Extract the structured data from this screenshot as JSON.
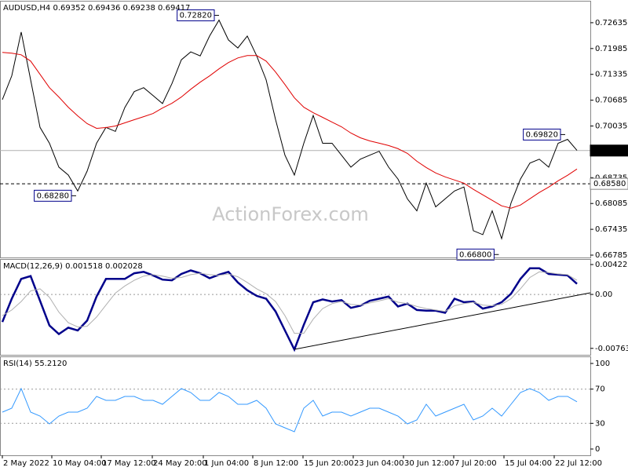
{
  "chart_data": [
    {
      "type": "line",
      "title": "AUDUSD,H4  0.69352 0.69436 0.69238 0.69417",
      "watermark": "ActionForex.com",
      "xlim": [
        -0.25,
        62.4167
      ],
      "ylim": [
        0.66726,
        0.73167
      ],
      "yticks": [
        0.72635,
        0.71985,
        0.71335,
        0.70685,
        0.70035,
        0.69385,
        0.68735,
        0.68085,
        0.67435,
        0.66785
      ],
      "series": [
        {
          "name": "AUDUSD",
          "color": "#000000",
          "width": 1,
          "values": [
            0.707,
            0.713,
            0.724,
            0.712,
            0.7,
            0.696,
            0.69,
            0.688,
            0.684,
            0.689,
            0.696,
            0.7,
            0.699,
            0.705,
            0.709,
            0.71,
            0.708,
            0.706,
            0.711,
            0.717,
            0.719,
            0.718,
            0.723,
            0.727,
            0.722,
            0.72,
            0.723,
            0.718,
            0.712,
            0.702,
            0.693,
            0.688,
            0.696,
            0.703,
            0.696,
            0.696,
            0.693,
            0.69,
            0.692,
            0.693,
            0.694,
            0.69,
            0.687,
            0.682,
            0.679,
            0.686,
            0.68,
            0.682,
            0.684,
            0.685,
            0.674,
            0.673,
            0.679,
            0.672,
            0.681,
            0.687,
            0.691,
            0.692,
            0.69,
            0.696,
            0.697,
            0.6942
          ]
        },
        {
          "name": "MA",
          "color": "#e00000",
          "width": 1,
          "values": [
            0.71887,
            0.71867,
            0.71828,
            0.7167,
            0.71335,
            0.71,
            0.70764,
            0.70508,
            0.70291,
            0.70094,
            0.69976,
            0.69996,
            0.70035,
            0.70114,
            0.70193,
            0.70271,
            0.7035,
            0.70488,
            0.70606,
            0.70764,
            0.70961,
            0.71138,
            0.71296,
            0.71473,
            0.71631,
            0.71749,
            0.71808,
            0.71808,
            0.7167,
            0.71394,
            0.71079,
            0.70744,
            0.70508,
            0.7037,
            0.70252,
            0.70133,
            0.70015,
            0.69858,
            0.6974,
            0.69661,
            0.69602,
            0.69543,
            0.69464,
            0.69346,
            0.69149,
            0.68991,
            0.68853,
            0.68755,
            0.68676,
            0.68597,
            0.6844,
            0.68302,
            0.68164,
            0.68026,
            0.67967,
            0.68046,
            0.68203,
            0.68361,
            0.68499,
            0.68656,
            0.68794,
            0.68952
          ]
        }
      ],
      "price_lines": [
        {
          "value": 0.69417,
          "style": "solid"
        },
        {
          "value": 0.6858,
          "label": "0.68580",
          "style": "dashed"
        }
      ],
      "annotations": [
        {
          "x": 23,
          "value": 0.7282,
          "label": "0.72820"
        },
        {
          "x": 7.83,
          "value": 0.6828,
          "label": "0.68280"
        },
        {
          "x": 59.75,
          "value": 0.6982,
          "label": "0.69820"
        },
        {
          "x": 52.7,
          "value": 0.668,
          "label": "0.66800"
        }
      ]
    },
    {
      "type": "line",
      "title": "MACD(12,26,9) 0.001518 0.002028",
      "xlim": [
        -0.25,
        62.4167
      ],
      "ylim": [
        -0.008547,
        0.004895
      ],
      "yticks": [
        0.004229,
        {
          "value": 0,
          "label": "0.00"
        },
        -0.007633
      ],
      "levels": [
        0
      ],
      "series": [
        {
          "name": "MACD",
          "color": "#00008b",
          "width": 2.5,
          "values": [
            -0.0039,
            -0.0006,
            0.0022,
            0.0026,
            -0.0009,
            -0.0044,
            -0.0056,
            -0.0047,
            -0.0051,
            -0.0037,
            -0.0003,
            0.0022,
            0.0022,
            0.0022,
            0.003,
            0.0032,
            0.0027,
            0.0021,
            0.002,
            0.0029,
            0.0034,
            0.003,
            0.0023,
            0.0028,
            0.0032,
            0.0017,
            0.0006,
            -0.0002,
            -0.0006,
            -0.0024,
            -0.0051,
            -0.0078,
            -0.0043,
            -0.0011,
            -0.0007,
            -0.001,
            -0.0008,
            -0.0019,
            -0.0016,
            -0.0009,
            -0.0006,
            -0.0003,
            -0.0017,
            -0.0013,
            -0.0022,
            -0.0023,
            -0.0023,
            -0.0026,
            -0.0006,
            -0.0011,
            -0.001,
            -0.002,
            -0.0017,
            -0.0011,
            0.0001,
            0.0022,
            0.0037,
            0.0037,
            0.0029,
            0.0028,
            0.0027,
            0.0015
          ]
        },
        {
          "name": "Signal",
          "color": "#b0b0b0",
          "width": 1,
          "values": [
            -0.003,
            -0.0022,
            -0.001,
            0.0005,
            0.0008,
            -0.0004,
            -0.0025,
            -0.004,
            -0.0046,
            -0.0045,
            -0.0032,
            -0.0015,
            0.0002,
            0.0012,
            0.002,
            0.0026,
            0.0028,
            0.0026,
            0.0023,
            0.0024,
            0.0028,
            0.003,
            0.0028,
            0.0027,
            0.0029,
            0.0025,
            0.0017,
            0.0008,
            0.0001,
            -0.001,
            -0.003,
            -0.0055,
            -0.0055,
            -0.0035,
            -0.002,
            -0.0013,
            -0.001,
            -0.0014,
            -0.0015,
            -0.0012,
            -0.0009,
            -0.0006,
            -0.0011,
            -0.0013,
            -0.0017,
            -0.002,
            -0.0022,
            -0.0024,
            -0.0016,
            -0.0013,
            -0.0011,
            -0.0015,
            -0.0016,
            -0.0014,
            -0.0006,
            0.0008,
            0.0024,
            0.0032,
            0.0031,
            0.0029,
            0.0028,
            0.002
          ]
        }
      ]
    },
    {
      "type": "line",
      "title": "RSI(14) 55.2120",
      "xlim": [
        -0.25,
        62.4167
      ],
      "ylim": [
        -7.34,
        107.34
      ],
      "yticks": [
        100,
        70,
        30,
        0
      ],
      "levels": [
        70,
        30
      ],
      "xticks": [
        {
          "value": 0,
          "label": "2 May 2022"
        },
        {
          "value": 5.25,
          "label": "10 May 04:00"
        },
        {
          "value": 10.5,
          "label": "17 May 12:00"
        },
        {
          "value": 15.917,
          "label": "24 May 20:00"
        },
        {
          "value": 21.333,
          "label": "1 Jun 04:00"
        },
        {
          "value": 26.583,
          "label": "8 Jun 12:00"
        },
        {
          "value": 31.917,
          "label": "15 Jun 20:00"
        },
        {
          "value": 37.25,
          "label": "23 Jun 04:00"
        },
        {
          "value": 42.583,
          "label": "30 Jun 12:00"
        },
        {
          "value": 47.917,
          "label": "7 Jul 20:00"
        },
        {
          "value": 53.25,
          "label": "15 Jul 04:00"
        },
        {
          "value": 58.583,
          "label": "22 Jul 12:00"
        }
      ],
      "series": [
        {
          "name": "RSI",
          "color": "#3399ff",
          "width": 1,
          "values": [
            43.1,
            47.7,
            70.6,
            43.1,
            38.5,
            29.4,
            38.5,
            43.1,
            43.1,
            47.7,
            61.5,
            56.9,
            56.9,
            61.5,
            61.5,
            56.9,
            56.9,
            52.3,
            61.5,
            70.6,
            66.1,
            56.9,
            56.9,
            66.1,
            61.5,
            52.3,
            52.3,
            56.9,
            47.7,
            29.4,
            24.8,
            20.2,
            47.7,
            56.9,
            38.5,
            43.1,
            43.1,
            38.5,
            43.1,
            47.7,
            47.7,
            43.1,
            38.5,
            29.4,
            33.9,
            52.3,
            38.5,
            43.1,
            47.7,
            52.3,
            33.9,
            38.5,
            47.7,
            38.5,
            52.3,
            66.1,
            70.6,
            66.1,
            56.9,
            61.5,
            61.5,
            55.2
          ]
        }
      ]
    }
  ]
}
